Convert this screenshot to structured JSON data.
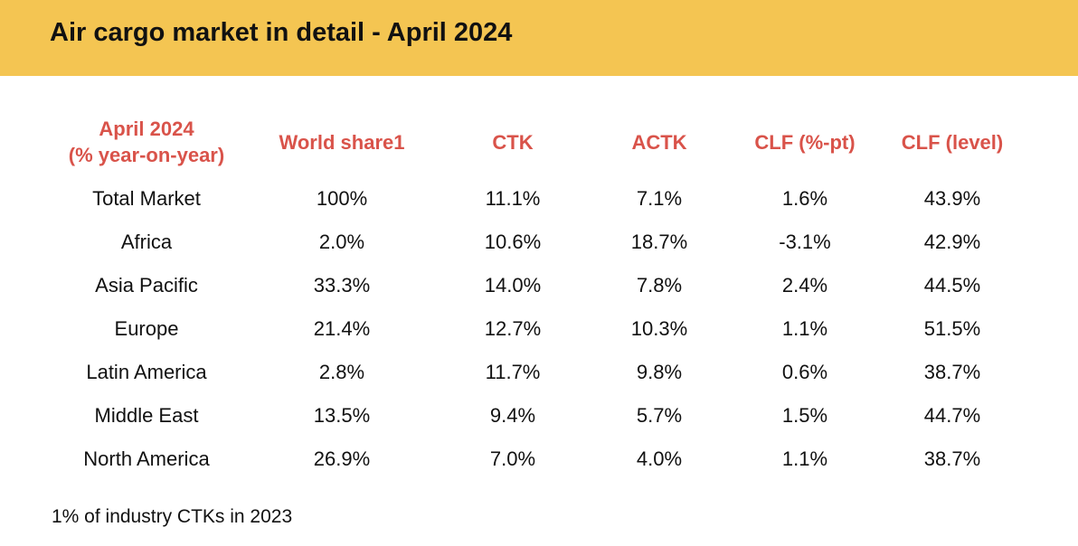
{
  "title": "Air cargo market in detail - April 2024",
  "footnote": "1% of industry CTKs in 2023",
  "chart_data": {
    "type": "table",
    "title": "Air cargo market in detail - April 2024",
    "columns": [
      [
        "April 2024",
        "(% year-on-year)"
      ],
      [
        "World share1"
      ],
      [
        "CTK"
      ],
      [
        "ACTK"
      ],
      [
        "CLF (%-pt)"
      ],
      [
        "CLF (level)"
      ]
    ],
    "rows": [
      [
        "Total Market",
        "100%",
        "11.1%",
        "7.1%",
        "1.6%",
        "43.9%"
      ],
      [
        "Africa",
        "2.0%",
        "10.6%",
        "18.7%",
        "-3.1%",
        "42.9%"
      ],
      [
        "Asia Pacific",
        "33.3%",
        "14.0%",
        "7.8%",
        "2.4%",
        "44.5%"
      ],
      [
        "Europe",
        "21.4%",
        "12.7%",
        "10.3%",
        "1.1%",
        "51.5%"
      ],
      [
        "Latin America",
        "2.8%",
        "11.7%",
        "9.8%",
        "0.6%",
        "38.7%"
      ],
      [
        "Middle East",
        "13.5%",
        "9.4%",
        "5.7%",
        "1.5%",
        "44.7%"
      ],
      [
        "North America",
        "26.9%",
        "7.0%",
        "4.0%",
        "1.1%",
        "38.7%"
      ]
    ]
  },
  "colors": {
    "banner": "#f4c552",
    "header_text": "#d9534a",
    "body_text": "#111111"
  }
}
